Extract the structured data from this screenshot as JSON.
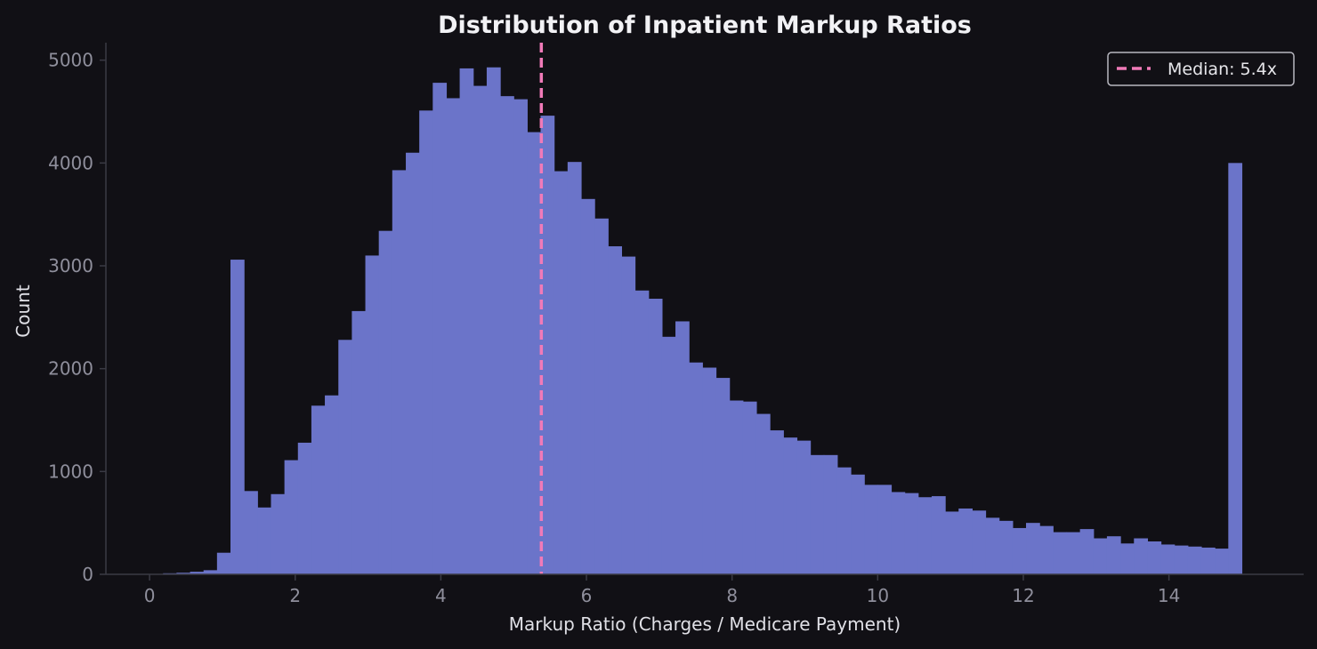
{
  "chart_data": {
    "type": "bar",
    "title": "Distribution of Inpatient Markup Ratios",
    "xlabel": "Markup Ratio (Charges / Medicare Payment)",
    "ylabel": "Count",
    "xlim": [
      -0.6,
      15.85
    ],
    "ylim": [
      0,
      5170
    ],
    "xticks": [
      0,
      2,
      4,
      6,
      8,
      10,
      12,
      14
    ],
    "yticks": [
      0,
      1000,
      2000,
      3000,
      4000,
      5000
    ],
    "bin_width": 0.1852,
    "bins_start": [
      0.185,
      0.37,
      0.556,
      0.741,
      0.926,
      1.111,
      1.296,
      1.481,
      1.667,
      1.852,
      2.037,
      2.222,
      2.407,
      2.593,
      2.778,
      2.963,
      3.148,
      3.333,
      3.519,
      3.704,
      3.889,
      4.074,
      4.259,
      4.444,
      4.63,
      4.815,
      5.0,
      5.185,
      5.37,
      5.556,
      5.741,
      5.926,
      6.111,
      6.296,
      6.481,
      6.667,
      6.852,
      7.037,
      7.222,
      7.407,
      7.593,
      7.778,
      7.963,
      8.148,
      8.333,
      8.519,
      8.704,
      8.889,
      9.074,
      9.259,
      9.444,
      9.63,
      9.815,
      10.0,
      10.185,
      10.37,
      10.556,
      10.741,
      10.926,
      11.111,
      11.296,
      11.481,
      11.667,
      11.852,
      12.037,
      12.222,
      12.407,
      12.593,
      12.778,
      12.963,
      13.148,
      13.333,
      13.519,
      13.704,
      13.889,
      14.074,
      14.259,
      14.444,
      14.63,
      14.815
    ],
    "values": [
      10,
      15,
      25,
      40,
      210,
      3060,
      810,
      650,
      780,
      1110,
      1280,
      1640,
      1740,
      2280,
      2560,
      3100,
      3340,
      3930,
      4100,
      4510,
      4780,
      4630,
      4920,
      4750,
      4930,
      4650,
      4620,
      4300,
      4460,
      3920,
      4010,
      3650,
      3460,
      3190,
      3090,
      2760,
      2680,
      2310,
      2460,
      2060,
      2010,
      1910,
      1690,
      1680,
      1560,
      1400,
      1330,
      1300,
      1160,
      1160,
      1040,
      970,
      870,
      870,
      800,
      790,
      750,
      760,
      610,
      640,
      620,
      550,
      520,
      450,
      500,
      470,
      410,
      410,
      440,
      350,
      370,
      300,
      350,
      320,
      290,
      280,
      270,
      260,
      250,
      4000
    ],
    "bar_color": "#6b74c9",
    "grid": false,
    "reference_line": {
      "x": 5.38,
      "style": "dashed",
      "color": "#f07ab8",
      "label": "Median: 5.4x"
    },
    "legend": {
      "placement": "top-right",
      "entries": [
        "Median: 5.4x"
      ]
    }
  }
}
